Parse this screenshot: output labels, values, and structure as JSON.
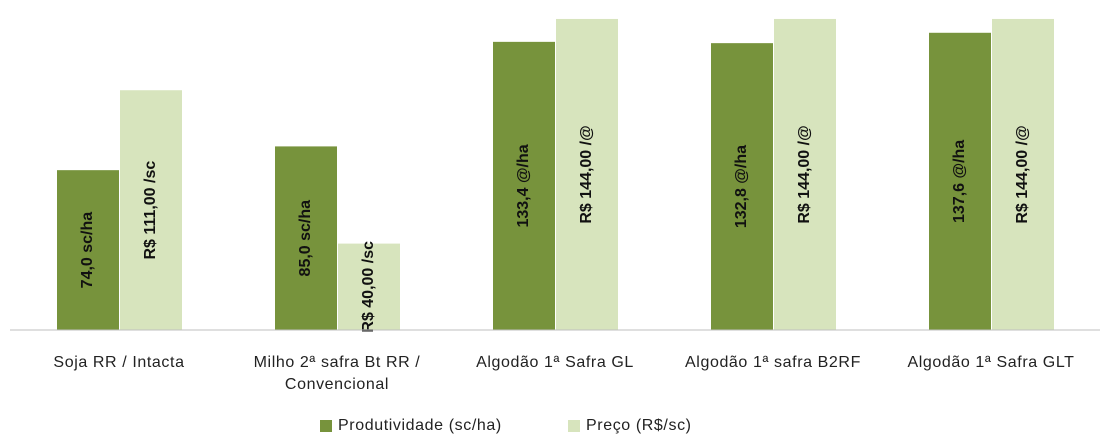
{
  "chart_data": {
    "type": "bar",
    "categories": [
      "Soja RR / Intacta",
      "Milho 2ª safra Bt RR / Convencional",
      "Algodão 1ª Safra GL",
      "Algodão 1ª safra B2RF",
      "Algodão 1ª Safra GLT"
    ],
    "series": [
      {
        "name": "Produtividade (sc/ha)",
        "color": "#77933c",
        "values": [
          74.0,
          85.0,
          133.4,
          132.8,
          137.6
        ],
        "value_labels": [
          "74,0 sc/ha",
          "85,0 sc/ha",
          "133,4 @/ha",
          "132,8 @/ha",
          "137,6 @/ha"
        ]
      },
      {
        "name": "Preço (R$/sc)",
        "color": "#d7e4bd",
        "values": [
          111.0,
          40.0,
          144.0,
          144.0,
          144.0
        ],
        "value_labels": [
          "R$ 111,00 /sc",
          "R$ 40,00 /sc",
          "R$ 144,00 /@",
          "R$ 144,00 /@",
          "R$ 144,00 /@"
        ]
      }
    ],
    "ylim": [
      0,
      150
    ],
    "legend": "bottom"
  }
}
